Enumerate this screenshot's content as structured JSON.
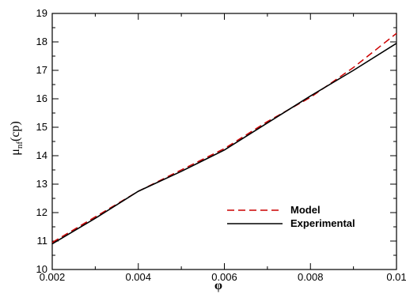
{
  "chart_data": {
    "type": "line",
    "title": "",
    "xlabel": "φ",
    "ylabel_main": "μ",
    "ylabel_sub": "nf",
    "ylabel_suffix": "(cp)",
    "xlim": [
      0.002,
      0.01
    ],
    "ylim": [
      10,
      19
    ],
    "x_ticks": [
      0.002,
      0.004,
      0.006,
      0.008,
      0.01
    ],
    "x_tick_labels": [
      "0.002",
      "0.004",
      "0.006",
      "0.008",
      "0.01"
    ],
    "y_ticks": [
      10,
      11,
      12,
      13,
      14,
      15,
      16,
      17,
      18,
      19
    ],
    "y_tick_labels": [
      "10",
      "11",
      "12",
      "13",
      "14",
      "15",
      "16",
      "17",
      "18",
      "19"
    ],
    "grid": false,
    "legend_position": "bottom-right",
    "series": [
      {
        "name": "Model",
        "color": "#cc0000",
        "style": "dashed",
        "x": [
          0.002,
          0.003,
          0.004,
          0.005,
          0.006,
          0.007,
          0.008,
          0.009,
          0.01
        ],
        "y": [
          10.95,
          11.85,
          12.75,
          13.5,
          14.25,
          15.2,
          16.05,
          17.1,
          18.3
        ]
      },
      {
        "name": "Experimental",
        "color": "#000000",
        "style": "solid",
        "x": [
          0.002,
          0.003,
          0.004,
          0.005,
          0.006,
          0.007,
          0.008,
          0.009,
          0.01
        ],
        "y": [
          10.9,
          11.8,
          12.75,
          13.45,
          14.2,
          15.15,
          16.1,
          17.0,
          17.95
        ]
      }
    ]
  }
}
